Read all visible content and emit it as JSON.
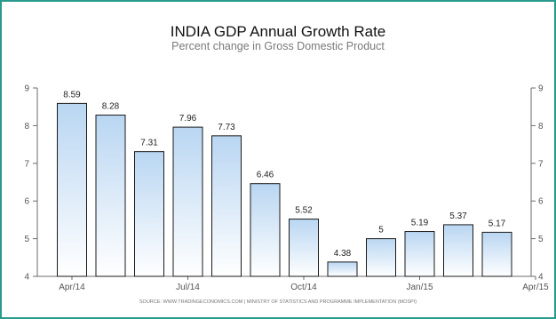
{
  "chart_data": {
    "type": "bar",
    "title": "INDIA GDP Annual Growth Rate",
    "subtitle": "Percent change in Gross Domestic Product",
    "values": [
      8.59,
      8.28,
      7.31,
      7.96,
      7.73,
      6.46,
      5.52,
      4.38,
      5,
      5.19,
      5.37,
      5.17
    ],
    "value_labels": [
      "8.59",
      "8.28",
      "7.31",
      "7.96",
      "7.73",
      "6.46",
      "5.52",
      "4.38",
      "5",
      "5.19",
      "5.37",
      "5.17"
    ],
    "x_tick_labels": [
      "Apr/14",
      "Jul/14",
      "Oct/14",
      "Jan/15",
      "Apr/15"
    ],
    "y_ticks": [
      4,
      5,
      6,
      7,
      8,
      9
    ],
    "ylim": [
      4,
      9
    ],
    "grid": false,
    "source": "SOURCE: WWW.TRADINGECONOMICS.COM  |  MINISTRY OF STATISTICS AND PROGRAMME IMPLEMENTATION (MOSPI)"
  },
  "colors": {
    "frame": "#2a9a8c",
    "bar_top": "#b9d6f2",
    "bar_bottom": "#ffffff",
    "bar_stroke": "#1a1a1a",
    "axis": "#6b6b6b"
  }
}
